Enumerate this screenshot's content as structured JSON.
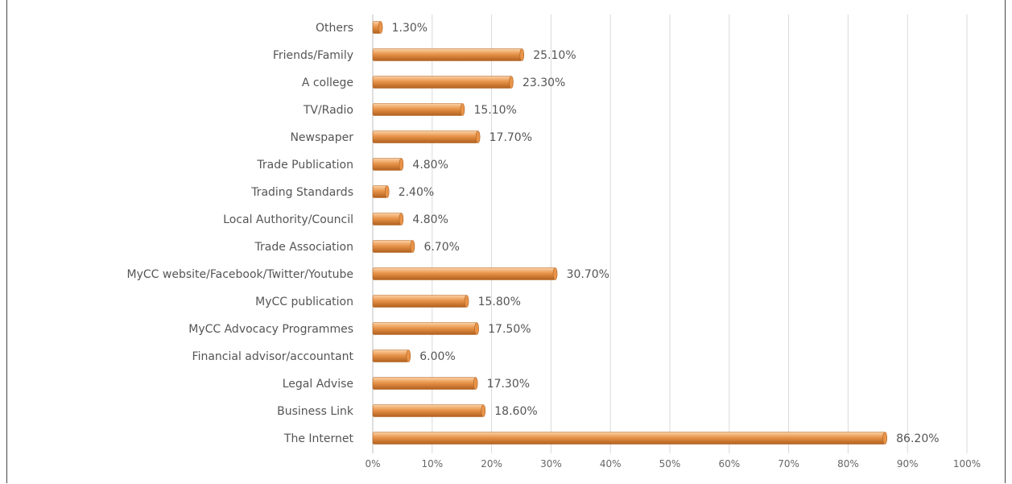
{
  "chart_data": {
    "type": "bar",
    "orientation": "horizontal",
    "categories": [
      "Others",
      "Friends/Family",
      "A college",
      "TV/Radio",
      "Newspaper",
      "Trade Publication",
      "Trading Standards",
      "Local Authority/Council",
      "Trade Association",
      "MyCC website/Facebook/Twitter/Youtube",
      "MyCC publication",
      "MyCC Advocacy Programmes",
      "Financial advisor/accountant",
      "Legal Advise",
      "Business Link",
      "The Internet"
    ],
    "values": [
      1.3,
      25.1,
      23.3,
      15.1,
      17.7,
      4.8,
      2.4,
      4.8,
      6.7,
      30.7,
      15.8,
      17.5,
      6.0,
      17.3,
      18.6,
      86.2
    ],
    "value_labels": [
      "1.30%",
      "25.10%",
      "23.30%",
      "15.10%",
      "17.70%",
      "4.80%",
      "2.40%",
      "4.80%",
      "6.70%",
      "30.70%",
      "15.80%",
      "17.50%",
      "6.00%",
      "17.30%",
      "18.60%",
      "86.20%"
    ],
    "x_ticks": [
      "0%",
      "10%",
      "20%",
      "30%",
      "40%",
      "50%",
      "60%",
      "70%",
      "80%",
      "90%",
      "100%"
    ],
    "xlim": [
      0,
      100
    ],
    "grid": true,
    "bar_color": "#e8944a",
    "bar_highlight": "#fbd3a8",
    "bar_shadow": "#b0601e"
  }
}
